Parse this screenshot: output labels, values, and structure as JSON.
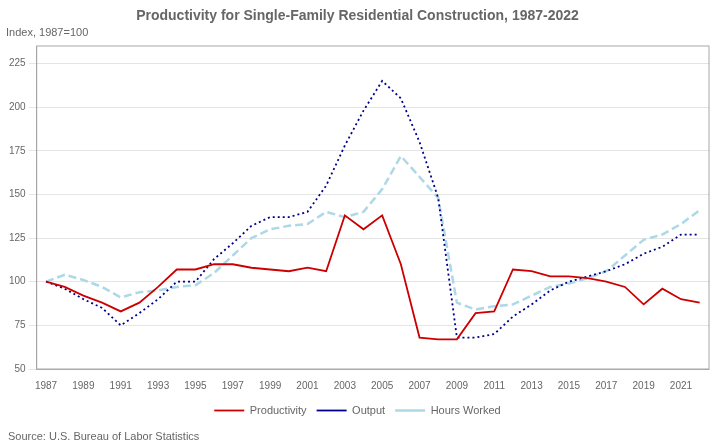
{
  "chart_data": {
    "type": "line",
    "title": "Productivity for Single-Family Residential Construction, 1987-2022",
    "subtitle": "Index, 1987=100",
    "source": "Source: U.S. Bureau of Labor Statistics",
    "x": [
      1987,
      1988,
      1989,
      1990,
      1991,
      1992,
      1993,
      1994,
      1995,
      1996,
      1997,
      1998,
      1999,
      2000,
      2001,
      2002,
      2003,
      2004,
      2005,
      2006,
      2007,
      2008,
      2009,
      2010,
      2011,
      2012,
      2013,
      2014,
      2015,
      2016,
      2017,
      2018,
      2019,
      2020,
      2021,
      2022
    ],
    "series": [
      {
        "name": "Productivity",
        "color": "#cc0000",
        "line_style": "solid",
        "values": [
          100,
          97,
          92,
          88,
          83,
          88,
          97,
          107,
          107,
          110,
          110,
          108,
          107,
          106,
          108,
          106,
          138,
          130,
          138,
          110,
          68,
          67,
          67,
          82,
          83,
          107,
          106,
          103,
          103,
          102,
          100,
          97,
          87,
          96,
          90,
          88
        ]
      },
      {
        "name": "Output",
        "color": "#00008b",
        "line_style": "dotted",
        "values": [
          100,
          96,
          90,
          85,
          75,
          82,
          90,
          100,
          100,
          113,
          122,
          132,
          137,
          137,
          140,
          155,
          178,
          198,
          215,
          205,
          180,
          148,
          68,
          68,
          70,
          80,
          87,
          95,
          100,
          103,
          106,
          110,
          116,
          120,
          127,
          127
        ]
      },
      {
        "name": "Hours Worked",
        "color": "#add8e6",
        "line_style": "dashed",
        "values": [
          100,
          104,
          101,
          97,
          91,
          94,
          95,
          97,
          98,
          105,
          115,
          125,
          130,
          132,
          133,
          140,
          137,
          140,
          153,
          172,
          160,
          148,
          88,
          84,
          86,
          87,
          92,
          97,
          99,
          102,
          106,
          115,
          124,
          127,
          133,
          141
        ]
      }
    ],
    "xlim": [
      1986.5,
      2022.5
    ],
    "xticks": [
      1987,
      1989,
      1991,
      1993,
      1995,
      1997,
      1999,
      2001,
      2003,
      2005,
      2007,
      2009,
      2011,
      2013,
      2015,
      2017,
      2019,
      2021
    ],
    "ylim": [
      50,
      235
    ],
    "yticks": [
      50,
      75,
      100,
      125,
      150,
      175,
      200,
      225
    ],
    "grid": "y",
    "legend": "bottom"
  }
}
